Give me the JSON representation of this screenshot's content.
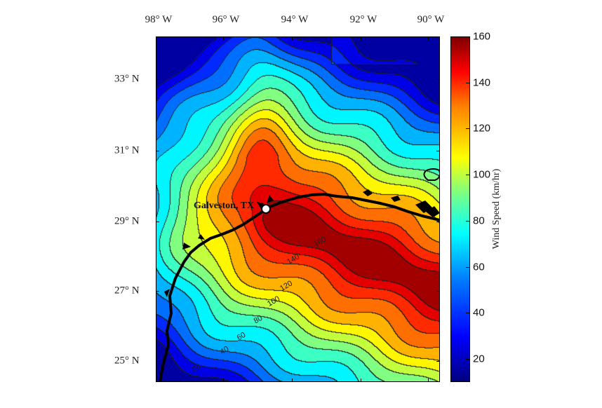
{
  "map": {
    "type": "contour",
    "title": "",
    "lon_ticks": [
      "98° W",
      "96° W",
      "94° W",
      "92° W",
      "90° W"
    ],
    "lon_values": [
      -98,
      -96,
      -94,
      -92,
      -90
    ],
    "lat_ticks": [
      "33° N",
      "31° N",
      "29° N",
      "27° N",
      "25° N"
    ],
    "lat_values": [
      33,
      31,
      29,
      27,
      25
    ],
    "city_label": "Galveston, TX",
    "colorbar": {
      "label": "Wind Speed (km/hr)",
      "ticks": [
        "20",
        "40",
        "60",
        "80",
        "100",
        "120",
        "140",
        "160"
      ],
      "tick_values": [
        20,
        40,
        60,
        80,
        100,
        120,
        140,
        160
      ],
      "range": [
        10,
        160
      ],
      "colormap": "jet"
    },
    "contour_labels": [
      "20",
      "40",
      "60",
      "80",
      "100",
      "120",
      "140",
      "160"
    ],
    "contour_interval": 10,
    "peak_value": 160
  }
}
